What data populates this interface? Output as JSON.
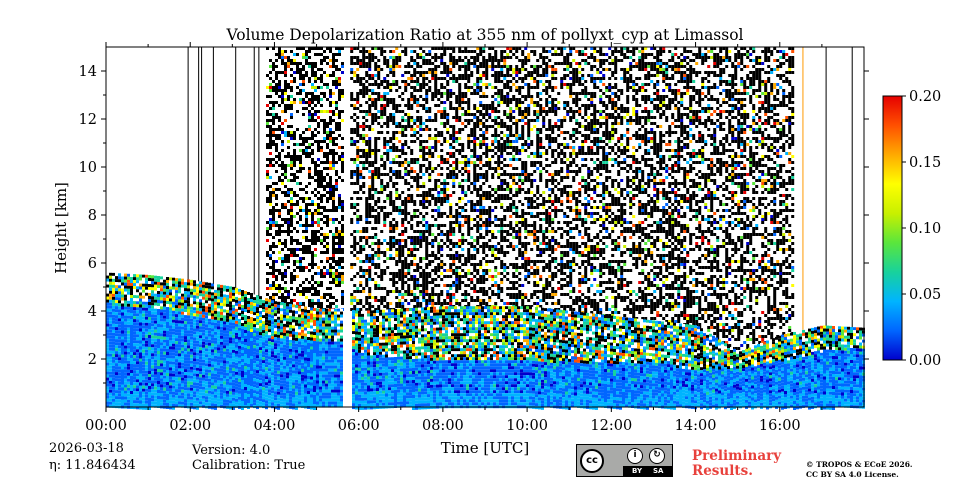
{
  "chart_data": {
    "type": "heatmap",
    "title": "Volume Depolarization Ratio at 355 nm of pollyxt_cyp at Limassol",
    "xlabel": "Time [UTC]",
    "ylabel": "Height [km]",
    "x_ticks": [
      "00:00",
      "02:00",
      "04:00",
      "06:00",
      "08:00",
      "10:00",
      "12:00",
      "14:00",
      "16:00"
    ],
    "xlim_hours": [
      0,
      18
    ],
    "y_ticks": [
      "2",
      "4",
      "6",
      "8",
      "10",
      "12",
      "14"
    ],
    "ylim_km": [
      0,
      15
    ],
    "colorbar": {
      "ticks": [
        "0.00",
        "0.05",
        "0.10",
        "0.15",
        "0.20"
      ],
      "range": [
        0,
        0.2
      ],
      "colors": [
        "#0000cc",
        "#0066ff",
        "#00b4ff",
        "#18d29c",
        "#5ae63c",
        "#c8f000",
        "#ffff00",
        "#ffaa00",
        "#ff5000",
        "#e60000"
      ]
    },
    "data_gap_hours": [
      5.62,
      5.8
    ],
    "boundary_layer_top_km": [
      [
        0,
        4.3
      ],
      [
        1,
        4.2
      ],
      [
        2,
        3.9
      ],
      [
        3,
        3.5
      ],
      [
        4,
        2.9
      ],
      [
        5,
        2.8
      ],
      [
        5.6,
        2.8
      ],
      [
        6,
        2.3
      ],
      [
        7,
        2.1
      ],
      [
        8,
        2.0
      ],
      [
        9,
        2.0
      ],
      [
        10,
        2.0
      ],
      [
        11,
        1.9
      ],
      [
        12,
        1.9
      ],
      [
        13,
        1.9
      ],
      [
        14,
        1.6
      ],
      [
        15,
        1.7
      ],
      [
        16,
        2.0
      ],
      [
        17,
        2.4
      ],
      [
        18,
        2.5
      ]
    ],
    "aerosol_layer_top_km": [
      [
        0,
        5.6
      ],
      [
        1,
        5.5
      ],
      [
        2,
        5.3
      ],
      [
        3,
        5.0
      ],
      [
        4,
        4.4
      ],
      [
        5,
        4.1
      ],
      [
        5.6,
        4.1
      ],
      [
        6,
        4.0
      ],
      [
        8,
        4.2
      ],
      [
        10,
        4.2
      ],
      [
        12,
        3.8
      ],
      [
        13,
        3.6
      ],
      [
        14,
        3.4
      ],
      [
        15,
        2.3
      ],
      [
        16,
        3.0
      ],
      [
        17,
        3.4
      ],
      [
        18,
        3.3
      ]
    ],
    "noise_segments_hours": [
      [
        3.8,
        5.62
      ],
      [
        5.8,
        16.3
      ]
    ],
    "vertical_line_hours": [
      {
        "h": 1.95,
        "color": "#000000"
      },
      {
        "h": 2.2,
        "color": "#000000"
      },
      {
        "h": 2.27,
        "color": "#000000"
      },
      {
        "h": 2.55,
        "color": "#000000"
      },
      {
        "h": 3.08,
        "color": "#000000"
      },
      {
        "h": 3.52,
        "color": "#000000"
      },
      {
        "h": 3.63,
        "color": "#000000"
      },
      {
        "h": 16.55,
        "color": "#ff9900"
      },
      {
        "h": 17.1,
        "color": "#000000"
      },
      {
        "h": 17.72,
        "color": "#000000"
      }
    ]
  },
  "footer": {
    "date": "2026-03-18",
    "eta": "η: 11.846434",
    "version": "Version: 4.0",
    "calibration": "Calibration: True",
    "license_badge": {
      "cc": "cc",
      "by": "BY",
      "sa": "SA"
    },
    "preliminary_line1": "Preliminary",
    "preliminary_line2": "Results.",
    "copyright_line1": "© TROPOS & ECoE 2026.",
    "copyright_line2": "CC BY SA 4.0 License."
  }
}
